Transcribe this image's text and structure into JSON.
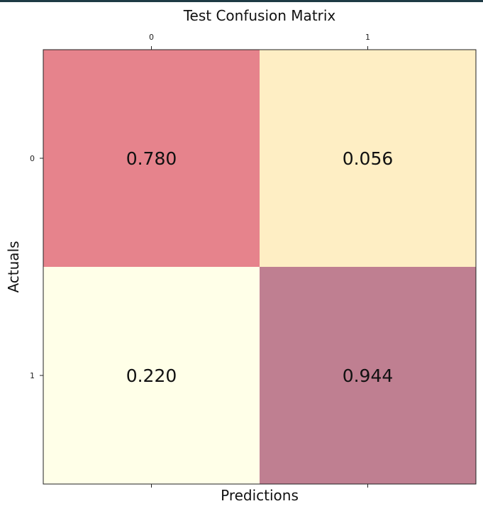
{
  "chart_data": {
    "type": "heatmap",
    "title": "Test Confusion Matrix",
    "xlabel": "Predictions",
    "ylabel": "Actuals",
    "x_categories": [
      "0",
      "1"
    ],
    "y_categories": [
      "0",
      "1"
    ],
    "values": [
      [
        0.78,
        0.056
      ],
      [
        0.22,
        0.944
      ]
    ],
    "value_labels": [
      [
        "0.780",
        "0.056"
      ],
      [
        "0.220",
        "0.944"
      ]
    ],
    "x_ticks_position": "top",
    "grid": false,
    "colormap": {
      "low": "#ffffe8",
      "mid": "#feeec4",
      "high_warm": "#e6838c",
      "high": "#bf7f91"
    },
    "cell_colors": [
      [
        "#e6838c",
        "#feeec4"
      ],
      [
        "#ffffe8",
        "#bf7f91"
      ]
    ]
  },
  "colors": {
    "top_bar": "#1e3a44",
    "frame": "#222222"
  }
}
